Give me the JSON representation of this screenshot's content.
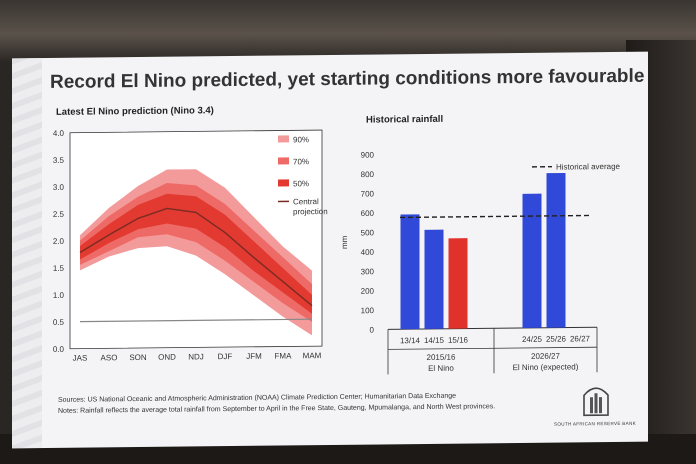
{
  "slide": {
    "title": "Record El Nino predicted, yet starting conditions more favourable",
    "notes": [
      "Sources: US National Oceanic and Atmospheric Administration (NOAA) Climate Prediction Center; Humanitarian Data Exchange",
      "Notes: Rainfall reflects the average total rainfall from September to April in the Free State, Gauteng, Mpumalanga, and North West provinces."
    ],
    "bank_name": "SOUTH AFRICAN RESERVE BANK",
    "logo_icon": "reserve-bank-logo-icon"
  },
  "chart_data": [
    {
      "type": "area",
      "title": "Latest El Nino prediction (Nino 3.4)",
      "categories": [
        "JAS",
        "ASO",
        "SON",
        "OND",
        "NDJ",
        "DJF",
        "JFM",
        "FMA",
        "MAM"
      ],
      "ylim": [
        0,
        4.0
      ],
      "yticks": [
        "0.0",
        "0.5",
        "1.0",
        "1.5",
        "2.0",
        "2.5",
        "3.0",
        "3.5",
        "4.0"
      ],
      "bands": [
        {
          "name": "90%",
          "color": "#f39a9a",
          "lower": [
            1.45,
            1.7,
            1.85,
            1.88,
            1.7,
            1.35,
            0.95,
            0.55,
            0.2
          ],
          "upper": [
            2.1,
            2.6,
            3.0,
            3.3,
            3.3,
            2.95,
            2.4,
            1.85,
            1.4
          ]
        },
        {
          "name": "70%",
          "color": "#ee6a66",
          "lower": [
            1.55,
            1.8,
            2.05,
            2.1,
            1.95,
            1.6,
            1.2,
            0.8,
            0.45
          ],
          "upper": [
            2.0,
            2.45,
            2.8,
            3.05,
            3.0,
            2.65,
            2.15,
            1.65,
            1.15
          ]
        },
        {
          "name": "50%",
          "color": "#e23a30",
          "lower": [
            1.65,
            1.95,
            2.2,
            2.3,
            2.2,
            1.85,
            1.4,
            1.0,
            0.6
          ],
          "upper": [
            1.9,
            2.3,
            2.65,
            2.85,
            2.8,
            2.45,
            1.95,
            1.45,
            0.95
          ]
        }
      ],
      "central": {
        "name": "Central projection",
        "color": "#7a2b24",
        "values": [
          1.78,
          2.1,
          2.4,
          2.58,
          2.5,
          2.12,
          1.65,
          1.2,
          0.75
        ]
      },
      "reference_line": 0.5,
      "legend": "right"
    },
    {
      "type": "bar",
      "title": "Historical rainfall",
      "ylabel": "mm",
      "ylim": [
        0,
        900
      ],
      "yticks": [
        "0",
        "100",
        "200",
        "300",
        "400",
        "500",
        "600",
        "700",
        "800",
        "900"
      ],
      "categories": [
        "13/14",
        "14/15",
        "15/16",
        "24/25",
        "25/26",
        "26/27"
      ],
      "values": [
        590,
        510,
        465,
        690,
        795,
        null
      ],
      "colors": [
        "#3049d8",
        "#3049d8",
        "#e0322a",
        "#3049d8",
        "#3049d8",
        "#3049d8"
      ],
      "historical_average": {
        "name": "Historical average",
        "value": 575
      },
      "groups": [
        {
          "label": "2015/16",
          "sublabel": "El Nino"
        },
        {
          "label": "2026/27",
          "sublabel": "El Nino (expected)"
        }
      ]
    }
  ]
}
